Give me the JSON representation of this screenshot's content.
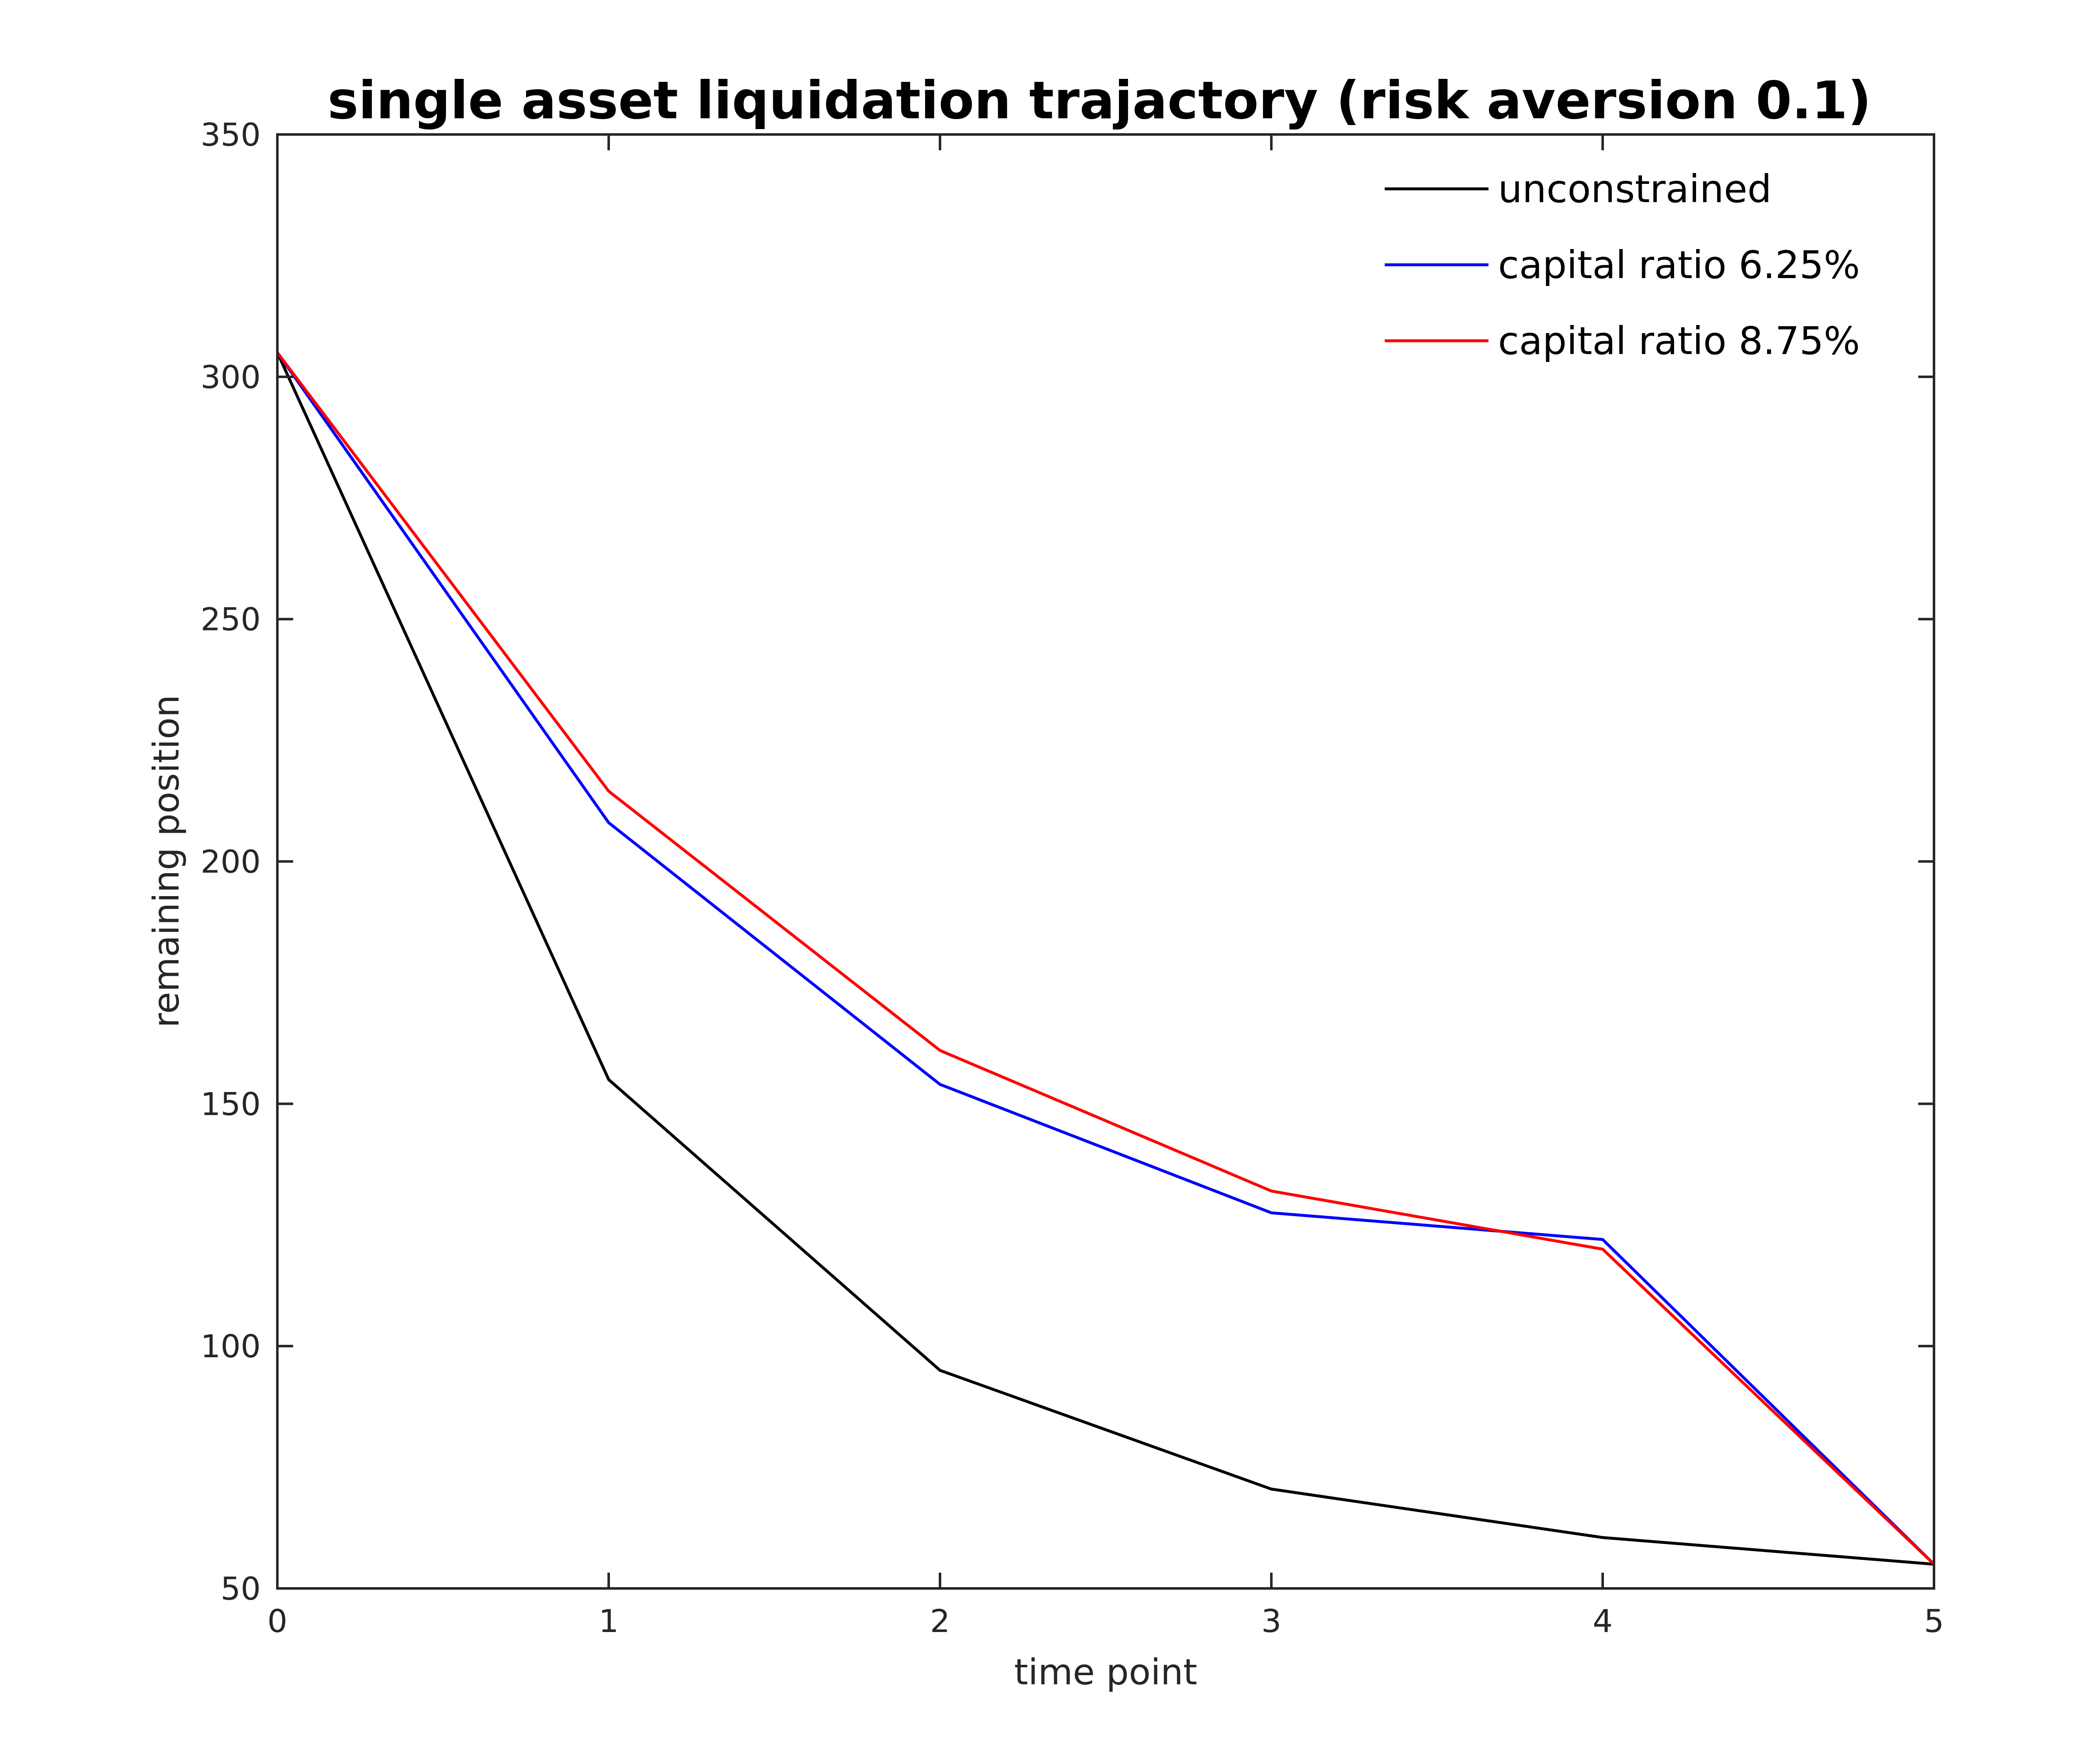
{
  "chart_data": {
    "type": "line",
    "title": "single asset liquidation trajactory (risk aversion 0.1)",
    "xlabel": "time point",
    "ylabel": "remaining position",
    "xlim": [
      0,
      5
    ],
    "ylim": [
      50,
      350
    ],
    "xticks": [
      "0",
      "1",
      "2",
      "3",
      "4",
      "5"
    ],
    "yticks": [
      "50",
      "100",
      "150",
      "200",
      "250",
      "300",
      "350"
    ],
    "grid": false,
    "legend_position": "top-right",
    "x": [
      0,
      1,
      2,
      3,
      4,
      5
    ],
    "series": [
      {
        "name": "unconstrained",
        "color": "#000000",
        "values": [
          305,
          155,
          95,
          70.5,
          60.5,
          55
        ]
      },
      {
        "name": "capital ratio 6.25%",
        "color": "#0000ff",
        "values": [
          305,
          208,
          154,
          127.5,
          122,
          55
        ]
      },
      {
        "name": "capital ratio  8.75%",
        "color": "#ff0000",
        "values": [
          305,
          214.5,
          161,
          132,
          120,
          55
        ]
      }
    ]
  }
}
